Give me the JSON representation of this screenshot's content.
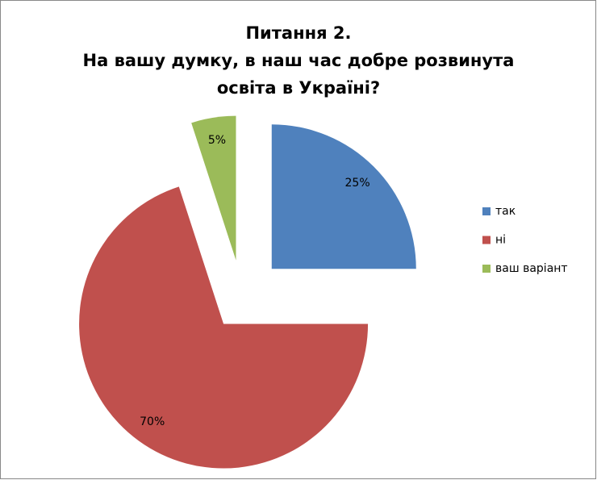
{
  "chart_data": {
    "type": "pie",
    "title": [
      "Питання 2.",
      "На вашу думку, в наш час добре розвинута",
      "освіта в Україні?"
    ],
    "categories": [
      "так",
      "ні",
      "ваш варіант"
    ],
    "values": [
      25,
      70,
      5
    ],
    "value_labels": [
      "25%",
      "70%",
      "5%"
    ],
    "colors": [
      "#4f81bd",
      "#c0504d",
      "#9bbb59"
    ],
    "legend": "right"
  }
}
